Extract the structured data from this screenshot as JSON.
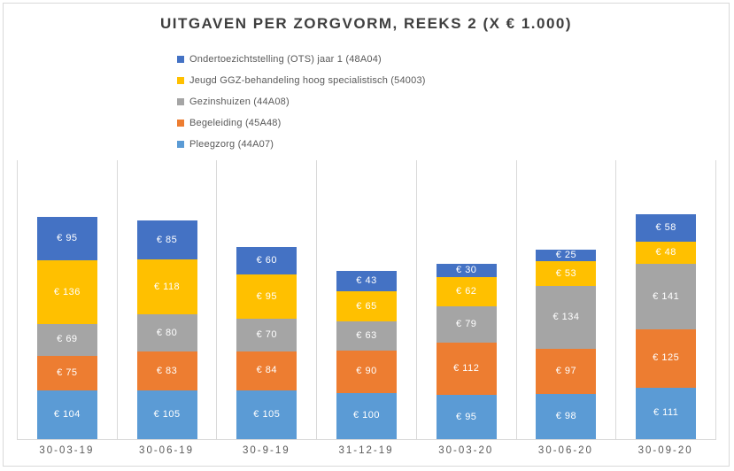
{
  "chart_data": {
    "type": "bar",
    "stacked": true,
    "title": "UITGAVEN PER ZORGVORM, REEKS 2 (X € 1.000)",
    "categories": [
      "30-03-19",
      "30-06-19",
      "30-9-19",
      "31-12-19",
      "30-03-20",
      "30-06-20",
      "30-09-20"
    ],
    "series": [
      {
        "name": "Pleegzorg (44A07)",
        "color": "#5B9BD5",
        "values": [
          104,
          105,
          105,
          100,
          95,
          98,
          111
        ]
      },
      {
        "name": "Begeleiding (45A48)",
        "color": "#ED7D31",
        "values": [
          75,
          83,
          84,
          90,
          112,
          97,
          125
        ]
      },
      {
        "name": "Gezinshuizen (44A08)",
        "color": "#A5A5A5",
        "values": [
          69,
          80,
          70,
          63,
          79,
          134,
          141
        ]
      },
      {
        "name": "Jeugd GGZ-behandeling hoog specialistisch (54003)",
        "color": "#FFC000",
        "values": [
          136,
          118,
          95,
          65,
          62,
          53,
          48
        ]
      },
      {
        "name": "Ondertoezichtstelling (OTS) jaar 1 (48A04)",
        "color": "#4472C4",
        "values": [
          95,
          85,
          60,
          43,
          30,
          25,
          58
        ]
      }
    ],
    "legend_position": "top-left",
    "legend_order_note": "legend lists series top-of-stack first",
    "value_prefix": "€ ",
    "data_label_color": "#FFFFFF",
    "ylim": [
      0,
      600
    ],
    "y_axis_visible": false,
    "grid": "vertical-category-separators",
    "grid_color": "#D9D9D9",
    "title_color": "#3F3F3F",
    "axis_text_color": "#595959"
  }
}
